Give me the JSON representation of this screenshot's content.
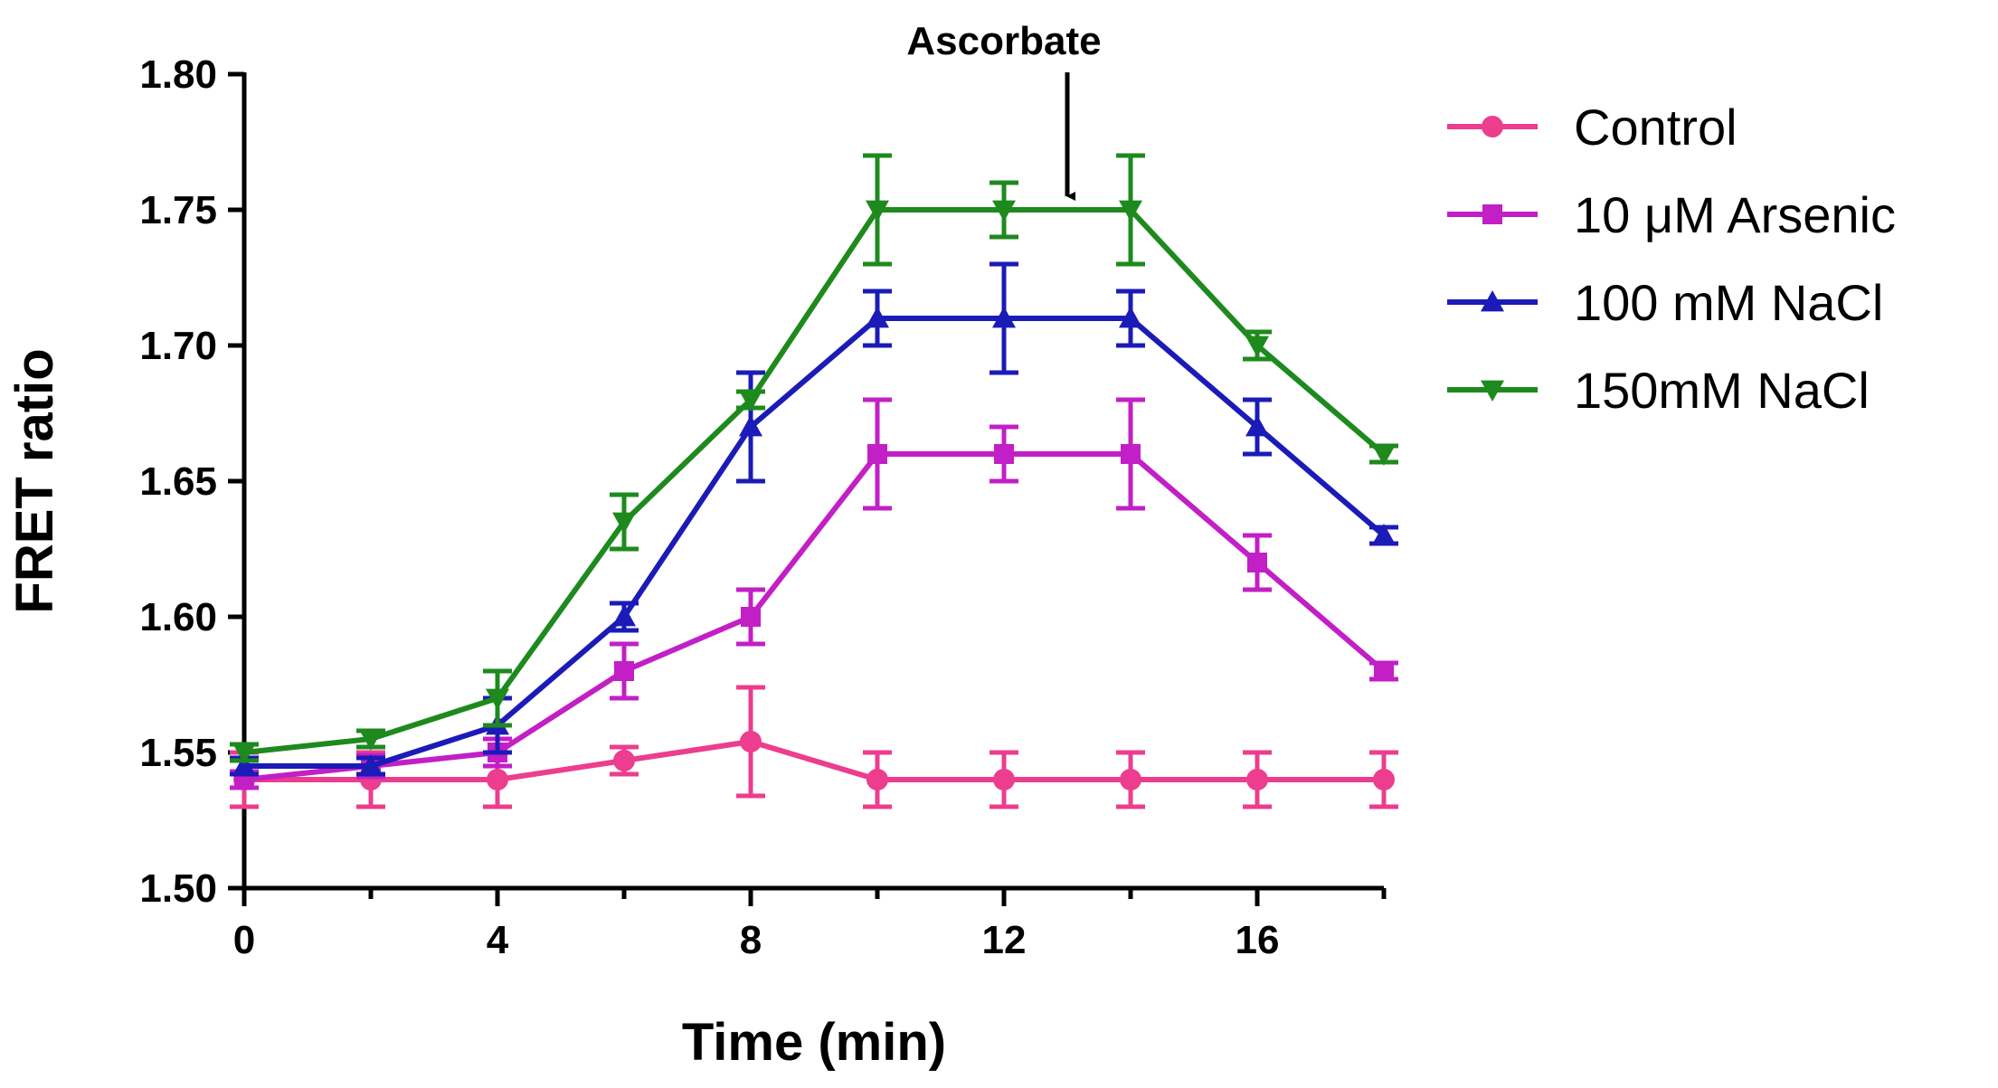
{
  "chart_data": {
    "type": "line",
    "title": "",
    "xlabel": "Time (min)",
    "ylabel": "FRET ratio",
    "xlim": [
      0,
      18
    ],
    "ylim": [
      1.5,
      1.8
    ],
    "xticks": [
      0,
      4,
      8,
      12,
      16
    ],
    "xtick_labels": [
      "0",
      "4",
      "8",
      "12",
      "16"
    ],
    "yticks": [
      1.5,
      1.55,
      1.6,
      1.65,
      1.7,
      1.75,
      1.8
    ],
    "ytick_labels": [
      "1.50",
      "1.55",
      "1.60",
      "1.65",
      "1.70",
      "1.75",
      "1.80"
    ],
    "grid": false,
    "legend_position": "right",
    "annotation": {
      "text": "Ascorbate",
      "x": 13,
      "y_from": 1.807,
      "y_to": 1.753
    },
    "x": [
      0,
      2,
      4,
      6,
      8,
      10,
      12,
      14,
      16,
      18
    ],
    "series": [
      {
        "name": "Control",
        "color": "#ec3d8e",
        "marker": "circle",
        "values": [
          1.54,
          1.54,
          1.54,
          1.547,
          1.554,
          1.54,
          1.54,
          1.54,
          1.54,
          1.54
        ],
        "errors": [
          0.01,
          0.01,
          0.01,
          0.005,
          0.02,
          0.01,
          0.01,
          0.01,
          0.01,
          0.01
        ]
      },
      {
        "name": "10 μM Arsenic",
        "color": "#c21fc6",
        "marker": "square",
        "values": [
          1.54,
          1.545,
          1.55,
          1.58,
          1.6,
          1.66,
          1.66,
          1.66,
          1.62,
          1.58
        ],
        "errors": [
          0.003,
          0.004,
          0.005,
          0.01,
          0.01,
          0.02,
          0.01,
          0.02,
          0.01,
          0.003
        ]
      },
      {
        "name": "100 mM NaCl",
        "color": "#1b1bb8",
        "marker": "triangle-up",
        "values": [
          1.545,
          1.545,
          1.56,
          1.6,
          1.67,
          1.71,
          1.71,
          1.71,
          1.67,
          1.63
        ],
        "errors": [
          0.003,
          0.003,
          0.01,
          0.005,
          0.02,
          0.01,
          0.02,
          0.01,
          0.01,
          0.003
        ]
      },
      {
        "name": "150mM NaCl",
        "color": "#1e8a1e",
        "marker": "triangle-down",
        "values": [
          1.55,
          1.555,
          1.57,
          1.635,
          1.68,
          1.75,
          1.75,
          1.75,
          1.7,
          1.66
        ],
        "errors": [
          0.003,
          0.003,
          0.01,
          0.01,
          0.003,
          0.02,
          0.01,
          0.02,
          0.005,
          0.003
        ]
      }
    ]
  }
}
